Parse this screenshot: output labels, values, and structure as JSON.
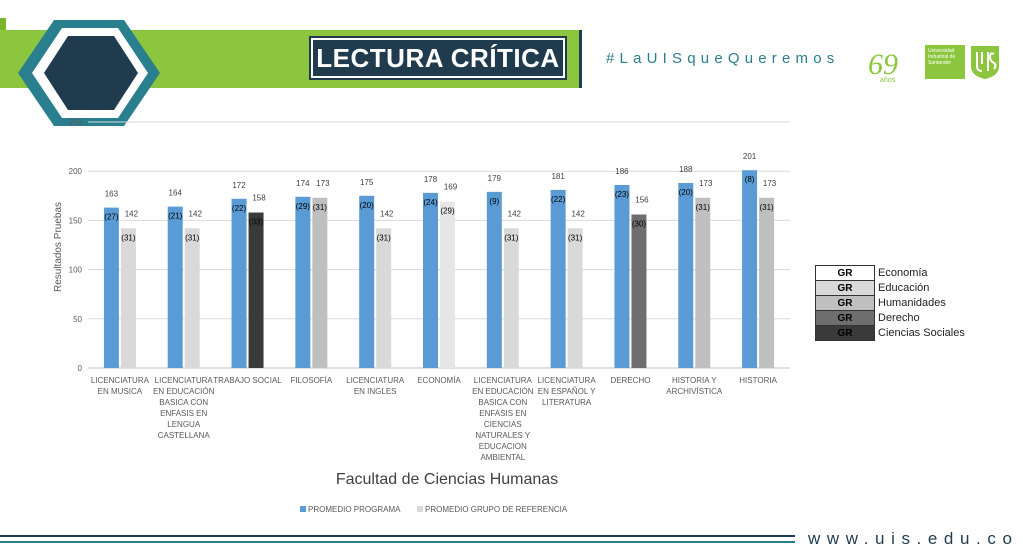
{
  "header": {
    "title": "LECTURA CRÍTICA",
    "hashtag": "#LaUISqueQueremos",
    "logo_text": "Universidad Industrial de Santander",
    "anniversary_number": "69",
    "anniversary_word": "años",
    "brand_color": "#8cc63f",
    "dark_color": "#1f3b4d"
  },
  "footer": {
    "url": "www.uis.edu.co"
  },
  "chart_data": {
    "type": "bar",
    "title": "Facultad de Ciencias Humanas",
    "ylabel": "Resultados Pruebas",
    "xlabel": "",
    "ylim": [
      0,
      250
    ],
    "yticks": [
      0,
      50,
      100,
      150,
      200,
      250
    ],
    "grid": true,
    "legend_placement": "bottom",
    "categories": [
      "LICENCIATURA EN MUSICA",
      "LICENCIATURA EN EDUCACIÓN BASICA CON ENFASIS EN LENGUA CASTELLANA",
      "TRABAJO SOCIAL",
      "FILOSOFÍA",
      "LICENCIATURA EN INGLES",
      "ECONOMÍA",
      "LICENCIATURA EN EDUCACIÓN BASICA CON ENFASIS EN CIENCIAS NATURALES Y EDUCACION AMBIENTAL",
      "LICENCIATURA EN ESPAÑOL Y LITERATURA",
      "DERECHO",
      "HISTORIA Y ARCHIVÍSTICA",
      "HISTORIA"
    ],
    "category_lines": [
      [
        "LICENCIATURA",
        "EN MUSICA"
      ],
      [
        "LICENCIATURA",
        "EN EDUCACIÓN",
        "BASICA CON",
        "ENFASIS EN",
        "LENGUA",
        "CASTELLANA"
      ],
      [
        "TRABAJO SOCIAL"
      ],
      [
        "FILOSOFÍA"
      ],
      [
        "LICENCIATURA",
        "EN INGLES"
      ],
      [
        "ECONOMÍA"
      ],
      [
        "LICENCIATURA",
        "EN EDUCACIÓN",
        "BASICA CON",
        "ENFASIS EN",
        "CIENCIAS",
        "NATURALES Y",
        "EDUCACION",
        "AMBIENTAL"
      ],
      [
        "LICENCIATURA",
        "EN ESPAÑOL Y",
        "LITERATURA"
      ],
      [
        "DERECHO"
      ],
      [
        "HISTORIA Y",
        "ARCHIVÍSTICA"
      ],
      [
        "HISTORIA"
      ]
    ],
    "series": [
      {
        "name": "PROMEDIO PROGRAMA",
        "color": "#5b9bd5",
        "values": [
          163,
          164,
          172,
          174,
          175,
          178,
          179,
          181,
          186,
          188,
          201
        ],
        "ranks": [
          "(27)",
          "(21)",
          "(22)",
          "(29)",
          "(20)",
          "(24)",
          "(9)",
          "(22)",
          "(23)",
          "(20)",
          "(8)"
        ]
      },
      {
        "name": "PROMEDIO GRUPO DE REFERENCIA",
        "color": "#d9d9d9",
        "values": [
          142,
          142,
          158,
          173,
          142,
          169,
          142,
          142,
          156,
          173,
          173
        ],
        "ranks": [
          "(31)",
          "(31)",
          "(33)",
          "(31)",
          "(31)",
          "(29)",
          "(31)",
          "(31)",
          "(30)",
          "(31)",
          "(31)"
        ],
        "bar_colors": [
          "#d9d9d9",
          "#d9d9d9",
          "#3a3a3a",
          "#bfbfbf",
          "#d9d9d9",
          "#e6e6e6",
          "#d9d9d9",
          "#d9d9d9",
          "#6e6e6e",
          "#bfbfbf",
          "#bfbfbf"
        ]
      }
    ],
    "group_legend": [
      {
        "code": "GR",
        "name": "Economía",
        "color": "#ffffff"
      },
      {
        "code": "GR",
        "name": "Educación",
        "color": "#d9d9d9"
      },
      {
        "code": "GR",
        "name": "Humanidades",
        "color": "#bfbfbf"
      },
      {
        "code": "GR",
        "name": "Derecho",
        "color": "#6e6e6e"
      },
      {
        "code": "GR",
        "name": "Ciencias Sociales",
        "color": "#3a3a3a"
      }
    ]
  }
}
